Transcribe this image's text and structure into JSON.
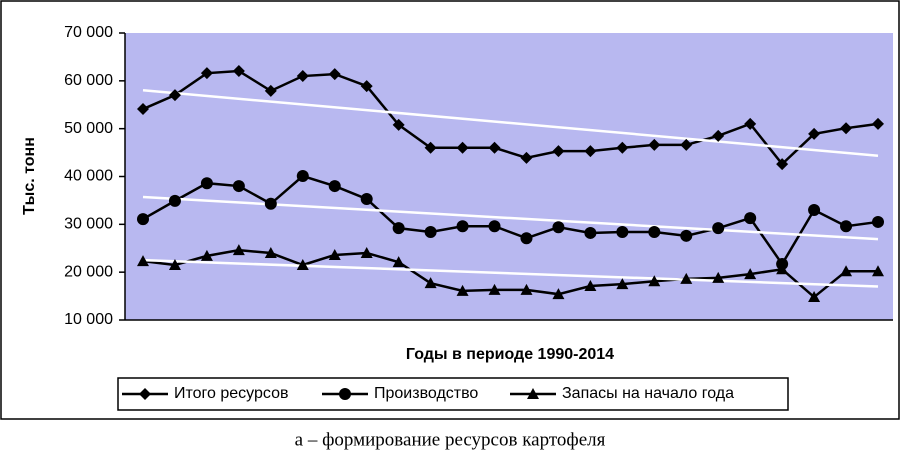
{
  "chart_data": {
    "type": "line",
    "y_label": "Тыс. тонн",
    "x_label": "Годы в периоде 1990-2014",
    "caption": "а – формирование ресурсов картофеля",
    "categories": [
      null,
      null,
      null,
      null,
      null,
      null,
      null,
      null,
      null,
      null,
      null,
      null,
      null,
      null,
      null,
      null,
      null,
      null,
      null,
      null,
      null,
      null,
      null,
      null
    ],
    "ylim": [
      10000,
      70000
    ],
    "yticks": [
      {
        "value": 10000,
        "label": "10 000"
      },
      {
        "value": 20000,
        "label": "20 000"
      },
      {
        "value": 30000,
        "label": "30 000"
      },
      {
        "value": 40000,
        "label": "40 000"
      },
      {
        "value": 50000,
        "label": "50 000"
      },
      {
        "value": 60000,
        "label": "60 000"
      },
      {
        "value": 70000,
        "label": "70 000"
      }
    ],
    "plot_background": "#b8b8f0",
    "trendline": true,
    "trendline_color": "#ffffff",
    "series": [
      {
        "name": "Итого ресурсов",
        "color": "#000000",
        "marker": "diamond",
        "values": [
          54100,
          57000,
          61600,
          62050,
          57900,
          61000,
          61400,
          58900,
          50800,
          46000,
          46000,
          46000,
          43900,
          45300,
          45300,
          46000,
          46600,
          46600,
          48500,
          51000,
          42600,
          48900,
          50100,
          51000
        ]
      },
      {
        "name": "Производство",
        "color": "#000000",
        "marker": "circle",
        "values": [
          31100,
          34900,
          38600,
          38000,
          34300,
          40100,
          38000,
          35300,
          29200,
          28400,
          29600,
          29600,
          27100,
          29400,
          28200,
          28400,
          28400,
          27600,
          29200,
          31300,
          21700,
          33000,
          29600,
          30500
        ]
      },
      {
        "name": "Запасы на начало года",
        "color": "#000000",
        "marker": "triangle",
        "values": [
          22300,
          21500,
          23400,
          24600,
          24000,
          21500,
          23600,
          24000,
          22100,
          17700,
          16100,
          16300,
          16300,
          15400,
          17100,
          17500,
          18100,
          18600,
          18800,
          19600,
          20600,
          14800,
          20200,
          20200
        ]
      }
    ]
  }
}
